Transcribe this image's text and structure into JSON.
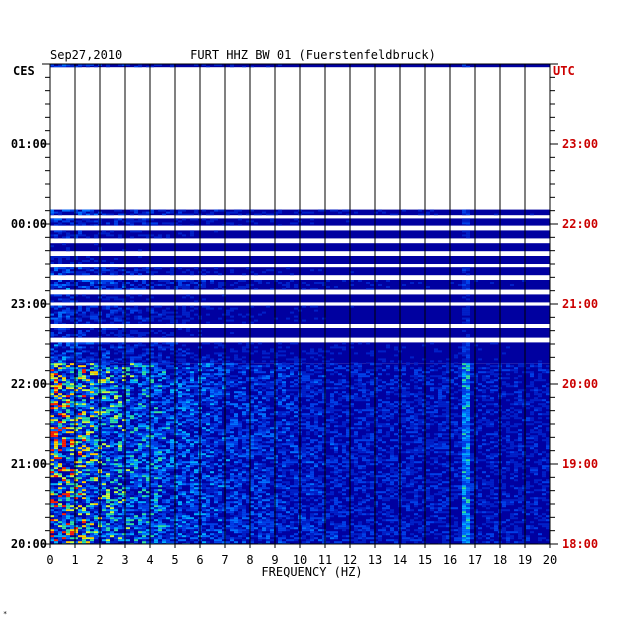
{
  "header": {
    "date": "Sep27,2010",
    "station": "FURT HHZ BW 01 (Fuerstenfeldbruck)"
  },
  "left_tz": "CES",
  "right_tz": "UTC",
  "footer_mark": "*",
  "colors": {
    "background": "#0000a0",
    "right_labels": "#cc0000",
    "gap": "#ffffff"
  },
  "chart_data": {
    "type": "heatmap",
    "title": "FURT HHZ BW 01 (Fuerstenfeldbruck)",
    "xlabel": "FREQUENCY (HZ)",
    "x_ticks": [
      "0",
      "1",
      "2",
      "3",
      "4",
      "5",
      "6",
      "7",
      "8",
      "9",
      "10",
      "11",
      "12",
      "13",
      "14",
      "15",
      "16",
      "17",
      "18",
      "19",
      "20"
    ],
    "xlim": [
      0,
      20
    ],
    "left_ticks": [
      "01:00",
      "00:00",
      "23:00",
      "22:00",
      "21:00",
      "20:00"
    ],
    "right_ticks": [
      "23:00",
      "22:00",
      "21:00",
      "20:00",
      "19:00",
      "18:00"
    ],
    "left_tick_hours": [
      5,
      4,
      3,
      2,
      1,
      0
    ],
    "time_range_hours": [
      0,
      6
    ],
    "data_rows": [
      {
        "t": [
          5.96,
          6.0
        ],
        "energy": 0.5
      },
      {
        "t": [
          4.11,
          4.18
        ],
        "energy": 0.6
      },
      {
        "t": [
          3.98,
          4.07
        ],
        "energy": 0.5
      },
      {
        "t": [
          3.82,
          3.92
        ],
        "energy": 0.4
      },
      {
        "t": [
          3.66,
          3.76
        ],
        "energy": 0.3
      },
      {
        "t": [
          3.5,
          3.6
        ],
        "energy": 0.3
      },
      {
        "t": [
          3.36,
          3.46
        ],
        "energy": 0.5
      },
      {
        "t": [
          3.18,
          3.3
        ],
        "energy": 0.6
      },
      {
        "t": [
          3.02,
          3.12
        ],
        "energy": 0.4
      },
      {
        "t": [
          2.75,
          2.98
        ],
        "energy": 0.5
      },
      {
        "t": [
          2.58,
          2.7
        ],
        "energy": 0.4
      },
      {
        "t": [
          2.26,
          2.52
        ],
        "energy": 0.6
      },
      {
        "t": [
          0.0,
          2.26
        ],
        "energy": 1.0
      }
    ]
  }
}
